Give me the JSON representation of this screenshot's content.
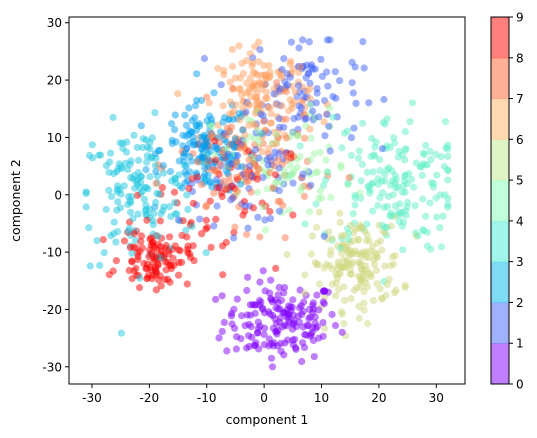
{
  "chart_data": {
    "type": "scatter",
    "title": "",
    "xlabel": "component 1",
    "ylabel": "component 2",
    "xlim": [
      -34,
      35
    ],
    "ylim": [
      -33,
      31
    ],
    "xticks": [
      -30,
      -20,
      -10,
      0,
      10,
      20,
      30
    ],
    "yticks": [
      -30,
      -20,
      -10,
      0,
      10,
      20,
      30
    ],
    "grid": false,
    "legend": "none",
    "colormap": "rainbow",
    "point_alpha": 0.5,
    "colorbar": {
      "ticks": [
        0,
        1,
        2,
        3,
        4,
        5,
        6,
        7,
        8,
        9
      ],
      "range": [
        0,
        9
      ],
      "colors": [
        "#8000ff",
        "#4062fa",
        "#00b5eb",
        "#40ecd4",
        "#80ffb4",
        "#c0eb8d",
        "#ffb360",
        "#ff6230",
        "#ff0000"
      ]
    },
    "series": [
      {
        "label": 0,
        "color": "#8000ff",
        "clusters": [
          {
            "center": [
              3,
              -22
            ],
            "spread": [
              5,
              3.5
            ],
            "count": 170
          }
        ]
      },
      {
        "label": 1,
        "color": "#4062fa",
        "clusters": [
          {
            "center": [
              7,
              18
            ],
            "spread": [
              5,
              5
            ],
            "count": 100
          },
          {
            "center": [
              -3,
              3
            ],
            "spread": [
              6,
              4
            ],
            "count": 70
          }
        ]
      },
      {
        "label": 2,
        "color": "#00a0f0",
        "clusters": [
          {
            "center": [
              -10,
              8
            ],
            "spread": [
              4,
              4
            ],
            "count": 150
          }
        ]
      },
      {
        "label": 3,
        "color": "#20c8e0",
        "clusters": [
          {
            "center": [
              -22,
              0
            ],
            "spread": [
              5,
              6
            ],
            "count": 150
          }
        ]
      },
      {
        "label": 4,
        "color": "#60f0c8",
        "clusters": [
          {
            "center": [
              22,
              2
            ],
            "spread": [
              6,
              6
            ],
            "count": 170
          }
        ]
      },
      {
        "label": 5,
        "color": "#a0f8a8",
        "clusters": [
          {
            "center": [
              3,
              5
            ],
            "spread": [
              6,
              5
            ],
            "count": 90
          }
        ]
      },
      {
        "label": 6,
        "color": "#d0d880",
        "clusters": [
          {
            "center": [
              16,
              -12
            ],
            "spread": [
              4,
              4
            ],
            "count": 160
          }
        ]
      },
      {
        "label": 7,
        "color": "#ffa060",
        "clusters": [
          {
            "center": [
              0,
              17
            ],
            "spread": [
              4,
              4
            ],
            "count": 150
          }
        ]
      },
      {
        "label": 8,
        "color": "#ff7848",
        "clusters": [
          {
            "center": [
              -3,
              5
            ],
            "spread": [
              6,
              5
            ],
            "count": 120
          }
        ]
      },
      {
        "label": 9,
        "color": "#ff0000",
        "clusters": [
          {
            "center": [
              -19,
              -11
            ],
            "spread": [
              3,
              2.5
            ],
            "count": 110
          },
          {
            "center": [
              -8,
              0
            ],
            "spread": [
              6,
              6
            ],
            "count": 60
          }
        ]
      }
    ]
  }
}
